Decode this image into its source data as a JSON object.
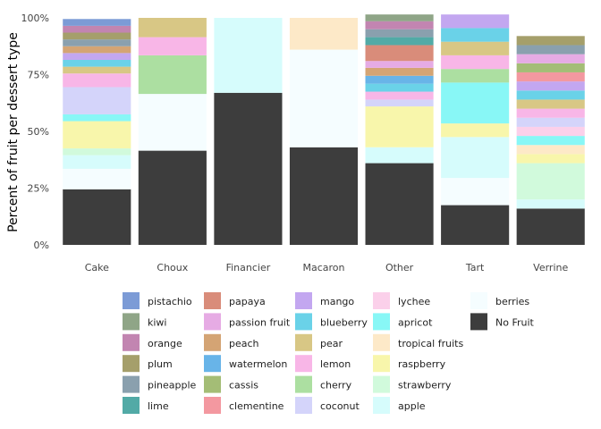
{
  "chart_data": {
    "type": "bar",
    "stacked": true,
    "title": "",
    "xlabel": "",
    "ylabel": "Percent of fruit per dessert type",
    "ylim": [
      0,
      100
    ],
    "y_ticks": [
      "0%",
      "25%",
      "50%",
      "75%",
      "100%"
    ],
    "categories": [
      "Cake",
      "Choux",
      "Financier",
      "Macaron",
      "Other",
      "Tart",
      "Verrine"
    ],
    "legend_position": "bottom",
    "legend_columns": [
      [
        "pistachio",
        "kiwi",
        "orange",
        "plum",
        "pineapple",
        "lime"
      ],
      [
        "papaya",
        "passion fruit",
        "peach",
        "watermelon",
        "cassis",
        "clementine"
      ],
      [
        "mango",
        "blueberry",
        "pear",
        "lemon",
        "cherry",
        "coconut"
      ],
      [
        "lychee",
        "apricot",
        "tropical fruits",
        "raspberry",
        "strawberry",
        "apple"
      ],
      [
        "berries",
        "No Fruit"
      ]
    ],
    "series": [
      {
        "name": "No Fruit",
        "color": "#3d3d3d",
        "values": [
          24.5,
          41.5,
          67,
          43,
          36,
          17.5,
          16
        ]
      },
      {
        "name": "berries",
        "color": "#f5fdff",
        "values": [
          9,
          25,
          0,
          43,
          0,
          12,
          0
        ]
      },
      {
        "name": "apple",
        "color": "#d6fcfc",
        "values": [
          6,
          0,
          33,
          0,
          7,
          18,
          4
        ]
      },
      {
        "name": "strawberry",
        "color": "#d1fadc",
        "values": [
          3,
          0,
          0,
          0,
          0,
          0,
          16
        ]
      },
      {
        "name": "raspberry",
        "color": "#f8f6ab",
        "values": [
          12,
          0,
          0,
          0,
          18,
          6,
          4
        ]
      },
      {
        "name": "tropical fruits",
        "color": "#fde9c8",
        "values": [
          0,
          0,
          0,
          14,
          0,
          0,
          4
        ]
      },
      {
        "name": "apricot",
        "color": "#88f7f6",
        "values": [
          3,
          0,
          0,
          0,
          0,
          18,
          4
        ]
      },
      {
        "name": "lychee",
        "color": "#fbd0ea",
        "values": [
          0,
          0,
          0,
          0,
          0,
          0,
          4
        ]
      },
      {
        "name": "coconut",
        "color": "#d4d4fa",
        "values": [
          12,
          0,
          0,
          0,
          3,
          0,
          4
        ]
      },
      {
        "name": "cherry",
        "color": "#acdfa1",
        "values": [
          0,
          17,
          0,
          0,
          0,
          6,
          0
        ]
      },
      {
        "name": "lemon",
        "color": "#f8b6e7",
        "values": [
          6,
          8,
          0,
          0,
          3.5,
          6,
          4
        ]
      },
      {
        "name": "pear",
        "color": "#d8c785",
        "values": [
          3,
          8.5,
          0,
          0,
          0,
          6,
          4
        ]
      },
      {
        "name": "blueberry",
        "color": "#6ad2e8",
        "values": [
          3,
          0,
          0,
          0,
          3.5,
          6,
          4
        ]
      },
      {
        "name": "mango",
        "color": "#c3a7f0",
        "values": [
          3,
          0,
          0,
          0,
          0,
          6,
          4
        ]
      },
      {
        "name": "clementine",
        "color": "#f398a0",
        "values": [
          0,
          0,
          0,
          0,
          0,
          0,
          4
        ]
      },
      {
        "name": "cassis",
        "color": "#a4bd76",
        "values": [
          0,
          0,
          0,
          0,
          0,
          0,
          4
        ]
      },
      {
        "name": "watermelon",
        "color": "#68b4e8",
        "values": [
          0,
          0,
          0,
          0,
          3.5,
          0,
          0
        ]
      },
      {
        "name": "peach",
        "color": "#d4a474",
        "values": [
          3,
          0,
          0,
          0,
          3.5,
          0,
          0
        ]
      },
      {
        "name": "passion fruit",
        "color": "#e6abe4",
        "values": [
          0,
          0,
          0,
          0,
          3,
          0,
          4
        ]
      },
      {
        "name": "papaya",
        "color": "#d98c7a",
        "values": [
          0,
          0,
          0,
          0,
          7,
          0,
          0
        ]
      },
      {
        "name": "lime",
        "color": "#52aaa6",
        "values": [
          0,
          0,
          0,
          0,
          3.5,
          0,
          0
        ]
      },
      {
        "name": "pineapple",
        "color": "#8aa0ae",
        "values": [
          3,
          0,
          0,
          0,
          3.5,
          0,
          4
        ]
      },
      {
        "name": "plum",
        "color": "#a59f6b",
        "values": [
          3,
          0,
          0,
          0,
          0,
          0,
          4
        ]
      },
      {
        "name": "orange",
        "color": "#c285b1",
        "values": [
          3,
          0,
          0,
          0,
          3.5,
          0,
          0
        ]
      },
      {
        "name": "kiwi",
        "color": "#8fa587",
        "values": [
          0,
          0,
          0,
          0,
          3,
          0,
          0
        ]
      },
      {
        "name": "pistachio",
        "color": "#7c9bd6",
        "values": [
          3,
          0,
          0,
          0,
          0,
          0,
          0
        ]
      }
    ]
  }
}
